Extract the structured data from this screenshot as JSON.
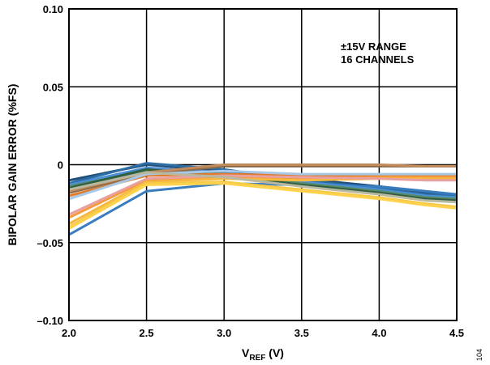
{
  "chart_data": {
    "type": "line",
    "title": "",
    "xlabel_main": "V",
    "xlabel_sub": "REF",
    "xlabel_unit": " (V)",
    "ylabel": "BIPOLAR GAIN ERROR (%FS)",
    "xlim": [
      2.0,
      4.5
    ],
    "ylim": [
      -0.1,
      0.1
    ],
    "x_ticks": [
      2.0,
      2.5,
      3.0,
      3.5,
      4.0,
      4.5
    ],
    "x_tick_labels": [
      "2.0",
      "2.5",
      "3.0",
      "3.5",
      "4.0",
      "4.5"
    ],
    "y_ticks": [
      -0.1,
      -0.05,
      0,
      0.05,
      0.1
    ],
    "y_tick_labels": [
      "–0.10",
      "–0.05",
      "0",
      "0.05",
      "0.10"
    ],
    "grid": true,
    "annotations": [
      "±15V RANGE",
      "16 CHANNELS"
    ],
    "figure_number": "104",
    "x": [
      2.0,
      2.5,
      3.0,
      3.5,
      4.0,
      4.3,
      4.5
    ],
    "series": [
      {
        "color": "#1f4e79",
        "values": [
          -0.01,
          0.0,
          -0.004,
          -0.009,
          -0.014,
          -0.018,
          -0.019
        ]
      },
      {
        "color": "#2e6da4",
        "values": [
          -0.012,
          0.001,
          -0.003,
          -0.01,
          -0.015,
          -0.019,
          -0.02
        ]
      },
      {
        "color": "#3a7dbf",
        "values": [
          -0.045,
          -0.017,
          -0.012,
          -0.013,
          -0.014,
          -0.017,
          -0.019
        ]
      },
      {
        "color": "#4a90d9",
        "values": [
          -0.013,
          -0.002,
          -0.005,
          -0.011,
          -0.016,
          -0.02,
          -0.021
        ]
      },
      {
        "color": "#5a8a6a",
        "values": [
          -0.014,
          -0.004,
          -0.006,
          -0.012,
          -0.017,
          -0.021,
          -0.022
        ]
      },
      {
        "color": "#2f5f3f",
        "values": [
          -0.015,
          -0.003,
          -0.007,
          -0.013,
          -0.018,
          -0.022,
          -0.023
        ]
      },
      {
        "color": "#8b6b4a",
        "values": [
          -0.018,
          -0.006,
          -0.001,
          -0.001,
          -0.001,
          -0.001,
          -0.001
        ]
      },
      {
        "color": "#c08a5a",
        "values": [
          -0.017,
          -0.005,
          0.0,
          0.0,
          0.0,
          -0.001,
          -0.001
        ]
      },
      {
        "color": "#e07c2c",
        "values": [
          -0.02,
          -0.007,
          -0.006,
          -0.007,
          -0.007,
          -0.007,
          -0.007
        ]
      },
      {
        "color": "#f59a3c",
        "values": [
          -0.034,
          -0.01,
          -0.008,
          -0.009,
          -0.008,
          -0.008,
          -0.008
        ]
      },
      {
        "color": "#f5b942",
        "values": [
          -0.038,
          -0.011,
          -0.009,
          -0.01,
          -0.009,
          -0.009,
          -0.009
        ]
      },
      {
        "color": "#f7c948",
        "values": [
          -0.04,
          -0.012,
          -0.011,
          -0.016,
          -0.021,
          -0.025,
          -0.027
        ]
      },
      {
        "color": "#ffd24d",
        "values": [
          -0.041,
          -0.013,
          -0.012,
          -0.017,
          -0.022,
          -0.026,
          -0.028
        ]
      },
      {
        "color": "#e8a0a0",
        "values": [
          -0.032,
          -0.009,
          -0.007,
          -0.008,
          -0.009,
          -0.01,
          -0.01
        ]
      },
      {
        "color": "#a8c8e8",
        "values": [
          -0.022,
          -0.006,
          -0.004,
          -0.006,
          -0.006,
          -0.006,
          -0.006
        ]
      },
      {
        "color": "#b8b8a0",
        "values": [
          -0.016,
          -0.005,
          -0.008,
          -0.014,
          -0.019,
          -0.023,
          -0.024
        ]
      }
    ]
  }
}
